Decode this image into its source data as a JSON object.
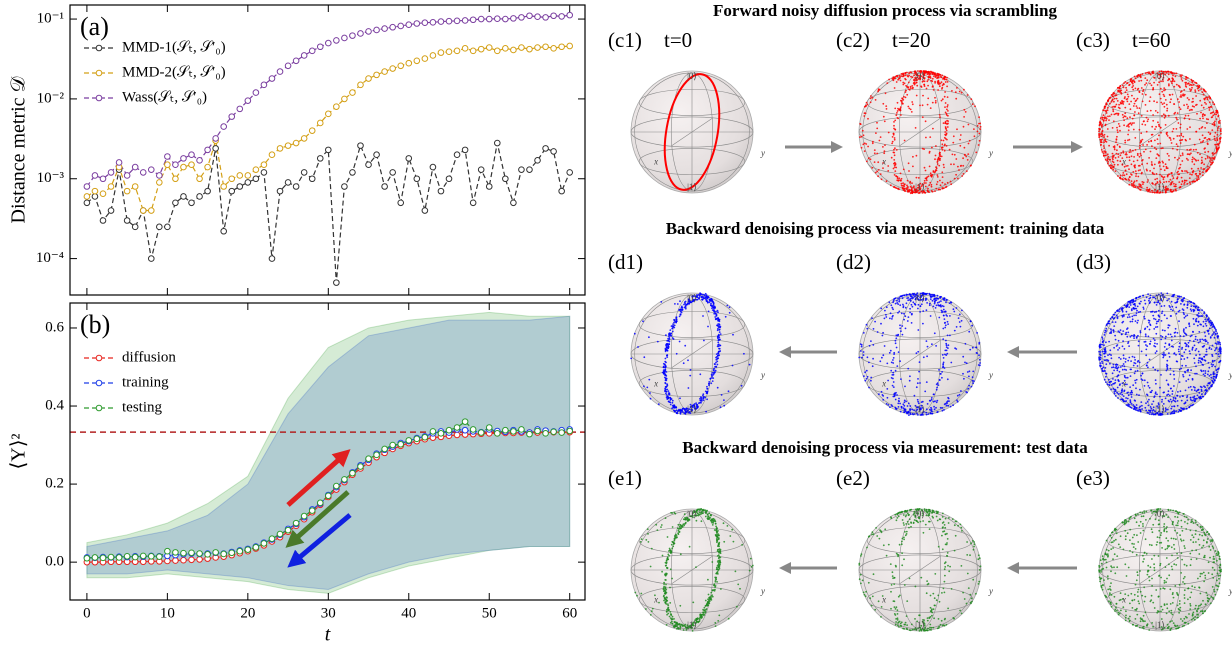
{
  "chart_data": [
    {
      "type": "line",
      "panel_label": "(a)",
      "ylabel": "Distance metric 𝒟",
      "yscale": "log",
      "legend": "upper left",
      "x": [
        0,
        1,
        2,
        3,
        4,
        5,
        6,
        7,
        8,
        9,
        10,
        11,
        12,
        13,
        14,
        15,
        16,
        17,
        18,
        19,
        20,
        21,
        22,
        23,
        24,
        25,
        26,
        27,
        28,
        29,
        30,
        31,
        32,
        33,
        34,
        35,
        36,
        37,
        38,
        39,
        40,
        41,
        42,
        43,
        44,
        45,
        46,
        47,
        48,
        49,
        50,
        51,
        52,
        53,
        54,
        55,
        56,
        57,
        58,
        59,
        60
      ],
      "xlim": [
        -2.1,
        61.9
      ],
      "xticks": [
        0,
        10,
        20,
        30,
        40,
        50,
        60
      ],
      "xtick_labels_shown": false,
      "ylim": [
        3.5e-05,
        0.15
      ],
      "yticks": [
        {
          "value": 0.0001,
          "label": "10⁻⁴"
        },
        {
          "value": 0.001,
          "label": "10⁻³"
        },
        {
          "value": 0.01,
          "label": "10⁻²"
        },
        {
          "value": 0.1,
          "label": "10⁻¹"
        }
      ],
      "series": [
        {
          "name": "MMD-1(𝒮ₜ, 𝒮′₀)",
          "color": "#333333",
          "values": [
            0.0005,
            0.0006,
            0.0003,
            0.0004,
            0.0013,
            0.0003,
            0.00025,
            0.0004,
            0.0001,
            0.00025,
            0.00025,
            0.0005,
            0.0006,
            0.0005,
            0.0006,
            0.0007,
            0.0024,
            0.00022,
            0.0007,
            0.0008,
            0.0009,
            0.001,
            0.0012,
            0.0001,
            0.0007,
            0.0009,
            0.0008,
            0.0012,
            0.001,
            0.0018,
            0.0023,
            5e-05,
            0.0008,
            0.0012,
            0.0026,
            0.0015,
            0.002,
            0.0008,
            0.0012,
            0.0005,
            0.0018,
            0.001,
            0.0004,
            0.0014,
            0.0007,
            0.001,
            0.002,
            0.0023,
            0.0005,
            0.0013,
            0.0008,
            0.0028,
            0.001,
            0.0005,
            0.0013,
            0.0013,
            0.0017,
            0.0024,
            0.0022,
            0.0007,
            0.0012
          ]
        },
        {
          "name": "MMD-2(𝒮ₜ, 𝒮′₀)",
          "color": "#d4a017",
          "values": [
            0.0006,
            0.0007,
            0.00065,
            0.0008,
            0.0014,
            0.0007,
            0.0008,
            0.0004,
            0.0004,
            0.0009,
            0.0015,
            0.001,
            0.0014,
            0.0015,
            0.001,
            0.0014,
            0.003,
            0.0008,
            0.001,
            0.0011,
            0.0011,
            0.0013,
            0.0015,
            0.002,
            0.0024,
            0.0026,
            0.0028,
            0.0032,
            0.004,
            0.005,
            0.0065,
            0.008,
            0.01,
            0.012,
            0.015,
            0.018,
            0.02,
            0.022,
            0.024,
            0.026,
            0.028,
            0.03,
            0.032,
            0.035,
            0.038,
            0.039,
            0.04,
            0.043,
            0.04,
            0.042,
            0.044,
            0.04,
            0.043,
            0.041,
            0.044,
            0.042,
            0.044,
            0.045,
            0.043,
            0.045,
            0.046
          ]
        },
        {
          "name": "Wass(𝒮ₜ, 𝒮′₀)",
          "color": "#7b3fa0",
          "values": [
            0.0008,
            0.0011,
            0.001,
            0.0012,
            0.0016,
            0.0011,
            0.0014,
            0.0012,
            0.0013,
            0.0011,
            0.0019,
            0.0015,
            0.0018,
            0.002,
            0.0017,
            0.0023,
            0.0032,
            0.0045,
            0.006,
            0.0075,
            0.0095,
            0.012,
            0.015,
            0.018,
            0.022,
            0.026,
            0.03,
            0.035,
            0.04,
            0.045,
            0.05,
            0.054,
            0.058,
            0.062,
            0.066,
            0.07,
            0.073,
            0.076,
            0.079,
            0.082,
            0.085,
            0.088,
            0.09,
            0.091,
            0.093,
            0.094,
            0.095,
            0.096,
            0.098,
            0.1,
            0.1,
            0.101,
            0.1,
            0.102,
            0.105,
            0.11,
            0.107,
            0.105,
            0.11,
            0.108,
            0.112
          ]
        }
      ]
    },
    {
      "type": "line",
      "panel_label": "(b)",
      "ylabel": "⟨Y⟩²",
      "xlabel": "t",
      "legend": "upper left",
      "x": [
        0,
        1,
        2,
        3,
        4,
        5,
        6,
        7,
        8,
        9,
        10,
        11,
        12,
        13,
        14,
        15,
        16,
        17,
        18,
        19,
        20,
        21,
        22,
        23,
        24,
        25,
        26,
        27,
        28,
        29,
        30,
        31,
        32,
        33,
        34,
        35,
        36,
        37,
        38,
        39,
        40,
        41,
        42,
        43,
        44,
        45,
        46,
        47,
        48,
        49,
        50,
        51,
        52,
        53,
        54,
        55,
        56,
        57,
        58,
        59,
        60
      ],
      "xlim": [
        -2.1,
        61.9
      ],
      "xticks": [
        0,
        10,
        20,
        30,
        40,
        50,
        60
      ],
      "ylim": [
        -0.097,
        0.664
      ],
      "yticks": [
        {
          "value": 0,
          "label": "0.0"
        },
        0.2,
        0.4,
        0.6
      ],
      "reference_line": 0.333,
      "reference_color": "#b22222",
      "series": [
        {
          "name": "diffusion",
          "color": "#e8251f",
          "values": [
            0.0,
            0.0,
            0.0,
            0.001,
            0.001,
            0.001,
            0.001,
            0.001,
            0.002,
            0.002,
            0.003,
            0.004,
            0.005,
            0.006,
            0.007,
            0.009,
            0.012,
            0.014,
            0.018,
            0.023,
            0.028,
            0.035,
            0.043,
            0.053,
            0.064,
            0.078,
            0.093,
            0.11,
            0.128,
            0.147,
            0.167,
            0.186,
            0.205,
            0.224,
            0.24,
            0.255,
            0.269,
            0.28,
            0.29,
            0.298,
            0.305,
            0.31,
            0.315,
            0.319,
            0.321,
            0.324,
            0.326,
            0.327,
            0.328,
            0.329,
            0.33,
            0.33,
            0.331,
            0.331,
            0.332,
            0.332,
            0.332,
            0.332,
            0.333,
            0.333,
            0.333
          ]
        },
        {
          "name": "training",
          "color": "#1f3fe8",
          "values": [
            0.012,
            0.011,
            0.013,
            0.012,
            0.014,
            0.013,
            0.015,
            0.014,
            0.016,
            0.015,
            0.016,
            0.018,
            0.02,
            0.022,
            0.021,
            0.022,
            0.024,
            0.022,
            0.026,
            0.03,
            0.034,
            0.04,
            0.05,
            0.058,
            0.07,
            0.085,
            0.098,
            0.115,
            0.135,
            0.15,
            0.172,
            0.192,
            0.21,
            0.23,
            0.248,
            0.262,
            0.278,
            0.288,
            0.296,
            0.305,
            0.31,
            0.318,
            0.322,
            0.33,
            0.335,
            0.332,
            0.34,
            0.338,
            0.335,
            0.333,
            0.34,
            0.336,
            0.334,
            0.338,
            0.335,
            0.332,
            0.34,
            0.337,
            0.335,
            0.338,
            0.34
          ],
          "band": {
            "x": [
              0,
              5,
              10,
              15,
              20,
              25,
              30,
              35,
              40,
              45,
              50,
              55,
              60
            ],
            "lower": [
              -0.03,
              -0.03,
              -0.02,
              -0.03,
              -0.04,
              -0.06,
              -0.07,
              -0.03,
              0.0,
              0.02,
              0.03,
              0.04,
              0.04
            ],
            "upper": [
              0.04,
              0.06,
              0.08,
              0.12,
              0.2,
              0.38,
              0.5,
              0.58,
              0.6,
              0.62,
              0.62,
              0.62,
              0.63
            ]
          }
        },
        {
          "name": "testing",
          "color": "#2e9a2e",
          "values": [
            0.01,
            0.012,
            0.011,
            0.013,
            0.012,
            0.015,
            0.013,
            0.016,
            0.015,
            0.014,
            0.028,
            0.025,
            0.023,
            0.024,
            0.022,
            0.02,
            0.025,
            0.021,
            0.024,
            0.028,
            0.032,
            0.038,
            0.048,
            0.06,
            0.072,
            0.082,
            0.1,
            0.118,
            0.132,
            0.152,
            0.17,
            0.195,
            0.212,
            0.228,
            0.245,
            0.265,
            0.275,
            0.29,
            0.3,
            0.302,
            0.312,
            0.316,
            0.32,
            0.335,
            0.33,
            0.338,
            0.345,
            0.36,
            0.34,
            0.332,
            0.345,
            0.33,
            0.338,
            0.335,
            0.34,
            0.328,
            0.336,
            0.33,
            0.334,
            0.332,
            0.336
          ],
          "band": {
            "x": [
              0,
              5,
              10,
              15,
              20,
              25,
              30,
              35,
              40,
              45,
              50,
              55,
              60
            ],
            "lower": [
              -0.04,
              -0.04,
              -0.03,
              -0.04,
              -0.05,
              -0.07,
              -0.08,
              -0.04,
              -0.01,
              0.01,
              0.03,
              0.04,
              0.04
            ],
            "upper": [
              0.05,
              0.07,
              0.1,
              0.15,
              0.22,
              0.42,
              0.55,
              0.6,
              0.62,
              0.63,
              0.64,
              0.63,
              0.63
            ]
          }
        }
      ]
    }
  ],
  "bloch": {
    "axis_labels": {
      "zero": "|0⟩",
      "one": "|1⟩",
      "y": "y",
      "x": "x"
    },
    "rows": [
      {
        "title": "Forward noisy diffusion process via scrambling",
        "color": "#ff0000",
        "panels": [
          {
            "label": "(c1)",
            "time": "t=0"
          },
          {
            "label": "(c2)",
            "time": "t=20"
          },
          {
            "label": "(c3)",
            "time": "t=60"
          }
        ]
      },
      {
        "title": "Backward denoising process via measurement: training data",
        "color": "#0000ff",
        "panels": [
          {
            "label": "(d1)"
          },
          {
            "label": "(d2)"
          },
          {
            "label": "(d3)"
          }
        ]
      },
      {
        "title": "Backward denoising process via measurement: test data",
        "color": "#228b22",
        "panels": [
          {
            "label": "(e1)"
          },
          {
            "label": "(e2)"
          },
          {
            "label": "(e3)"
          }
        ]
      }
    ]
  }
}
